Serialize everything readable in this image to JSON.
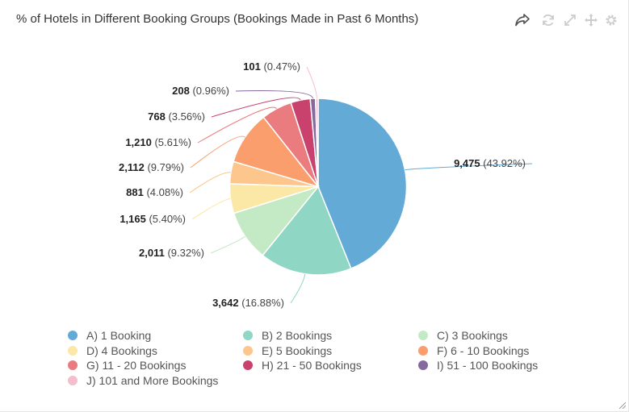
{
  "chart_data": {
    "type": "pie",
    "title": "% of Hotels in Different Booking Groups (Bookings Made in Past 6 Months)",
    "slices": [
      {
        "label": "A) 1 Booking",
        "value": 9475,
        "value_label": "9,475",
        "percent_label": "(43.92%)",
        "color": "#63abd6"
      },
      {
        "label": "B) 2 Bookings",
        "value": 3642,
        "value_label": "3,642",
        "percent_label": "(16.88%)",
        "color": "#8fd6c4"
      },
      {
        "label": "C) 3 Bookings",
        "value": 2011,
        "value_label": "2,011",
        "percent_label": "(9.32%)",
        "color": "#c4e9c5"
      },
      {
        "label": "D) 4 Bookings",
        "value": 1165,
        "value_label": "1,165",
        "percent_label": "(5.40%)",
        "color": "#fbe8a6"
      },
      {
        "label": "E) 5 Bookings",
        "value": 881,
        "value_label": "881",
        "percent_label": "(4.08%)",
        "color": "#fcc68c"
      },
      {
        "label": "F) 6 - 10 Bookings",
        "value": 2112,
        "value_label": "2,112",
        "percent_label": "(9.79%)",
        "color": "#fa9e6d"
      },
      {
        "label": "G) 11 - 20 Bookings",
        "value": 1210,
        "value_label": "1,210",
        "percent_label": "(5.61%)",
        "color": "#ea7b7e"
      },
      {
        "label": "H) 21 - 50 Bookings",
        "value": 768,
        "value_label": "768",
        "percent_label": "(3.56%)",
        "color": "#c9426e"
      },
      {
        "label": "I) 51 - 100 Bookings",
        "value": 208,
        "value_label": "208",
        "percent_label": "(0.96%)",
        "color": "#85699f"
      },
      {
        "label": "J) 101 and More Bookings",
        "value": 101,
        "value_label": "101",
        "percent_label": "(0.47%)",
        "color": "#f3bfcf"
      }
    ],
    "legend_position": "bottom",
    "start_angle": "12 o'clock, clockwise"
  },
  "toolbar": {
    "share_icon": "share-icon",
    "refresh_icon": "refresh-icon",
    "expand_icon": "expand-icon",
    "move_icon": "move-icon",
    "settings_icon": "gear-icon"
  }
}
